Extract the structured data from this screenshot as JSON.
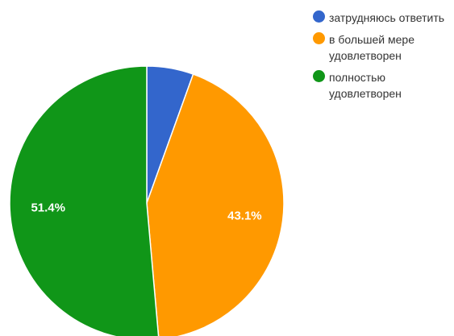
{
  "chart_data": {
    "type": "pie",
    "title": "",
    "slices": [
      {
        "label": "затрудняюсь ответить",
        "value": 5.5,
        "display": "",
        "color": "#3366cc"
      },
      {
        "label": "в большей мере удовлетворен",
        "value": 43.1,
        "display": "43.1%",
        "color": "#ff9900"
      },
      {
        "label": "полностью удовлетворен",
        "value": 51.4,
        "display": "51.4%",
        "color": "#109618"
      }
    ],
    "start_angle_deg": 0,
    "direction": "clockwise",
    "legend_position": "right"
  }
}
